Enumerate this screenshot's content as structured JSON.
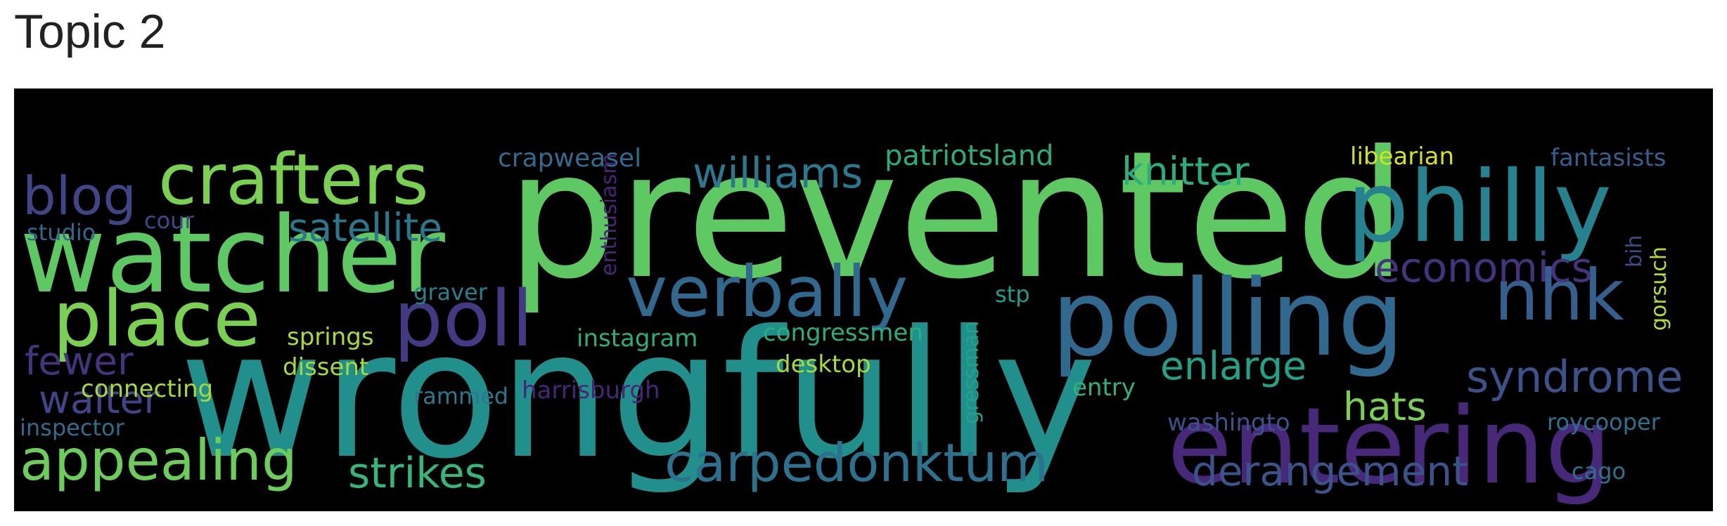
{
  "title": "Topic 2",
  "words": [
    {
      "text": "prevented",
      "color": "#5ec962",
      "size": 250
    },
    {
      "text": "wrongfully",
      "color": "#21908d",
      "size": 250
    },
    {
      "text": "watcher",
      "color": "#5ec962",
      "size": 150
    },
    {
      "text": "polling",
      "color": "#31688e",
      "size": 150
    },
    {
      "text": "entering",
      "color": "#482878",
      "size": 150
    },
    {
      "text": "philly",
      "color": "#26828e",
      "size": 140
    },
    {
      "text": "crafters",
      "color": "#7ad151",
      "size": 100
    },
    {
      "text": "place",
      "color": "#7ad151",
      "size": 110
    },
    {
      "text": "poll",
      "color": "#443983",
      "size": 110
    },
    {
      "text": "verbally",
      "color": "#31688e",
      "size": 100
    },
    {
      "text": "nhk",
      "color": "#355f8d",
      "size": 100
    },
    {
      "text": "blog",
      "color": "#414487",
      "size": 75
    },
    {
      "text": "appealing",
      "color": "#6ccd5a",
      "size": 80
    },
    {
      "text": "carpedonktum",
      "color": "#2c728e",
      "size": 75
    },
    {
      "text": "syndrome",
      "color": "#3b528b",
      "size": 62
    },
    {
      "text": "williams",
      "color": "#2a788e",
      "size": 60
    },
    {
      "text": "strikes",
      "color": "#35b779",
      "size": 60
    },
    {
      "text": "derangement",
      "color": "#3b528b",
      "size": 58
    },
    {
      "text": "economics",
      "color": "#46337e",
      "size": 58
    },
    {
      "text": "walter",
      "color": "#414487",
      "size": 55
    },
    {
      "text": "satellite",
      "color": "#2a788e",
      "size": 55
    },
    {
      "text": "knitter",
      "color": "#29af7f",
      "size": 55
    },
    {
      "text": "enlarge",
      "color": "#20a386",
      "size": 55
    },
    {
      "text": "hats",
      "color": "#7ad151",
      "size": 55
    },
    {
      "text": "fewer",
      "color": "#46337e",
      "size": 55
    },
    {
      "text": "patriotsland",
      "color": "#27ad81",
      "size": 40
    },
    {
      "text": "crapweasel",
      "color": "#2f6c8e",
      "size": 36
    },
    {
      "text": "libearian",
      "color": "#d2e21b",
      "size": 34
    },
    {
      "text": "fantasists",
      "color": "#355f8d",
      "size": 34
    },
    {
      "text": "studio",
      "color": "#306a8e",
      "size": 32
    },
    {
      "text": "cour",
      "color": "#3e4a89",
      "size": 32
    },
    {
      "text": "graver",
      "color": "#27808e",
      "size": 32
    },
    {
      "text": "springs",
      "color": "#a8db34",
      "size": 34
    },
    {
      "text": "instagram",
      "color": "#29af7f",
      "size": 34
    },
    {
      "text": "congressmen",
      "color": "#29af7f",
      "size": 34
    },
    {
      "text": "dissent",
      "color": "#a5db36",
      "size": 34
    },
    {
      "text": "connecting",
      "color": "#a5db36",
      "size": 34
    },
    {
      "text": "rammed",
      "color": "#2a788e",
      "size": 32
    },
    {
      "text": "harrisburgh",
      "color": "#482576",
      "size": 34
    },
    {
      "text": "desktop",
      "color": "#a5db36",
      "size": 34
    },
    {
      "text": "entry",
      "color": "#2db27d",
      "size": 34
    },
    {
      "text": "stp",
      "color": "#1f9e89",
      "size": 32
    },
    {
      "text": "washingto",
      "color": "#3a538b",
      "size": 34
    },
    {
      "text": "roycooper",
      "color": "#2c728e",
      "size": 32
    },
    {
      "text": "inspector",
      "color": "#2f6c8e",
      "size": 32
    },
    {
      "text": "cago",
      "color": "#2c728e",
      "size": 32
    },
    {
      "text": "enthusiasm",
      "color": "#482576",
      "size": 30
    },
    {
      "text": "gressman",
      "color": "#20a386",
      "size": 30
    },
    {
      "text": "gorsuch",
      "color": "#b5de2b",
      "size": 30
    },
    {
      "text": "bih",
      "color": "#3e4a89",
      "size": 30
    }
  ]
}
